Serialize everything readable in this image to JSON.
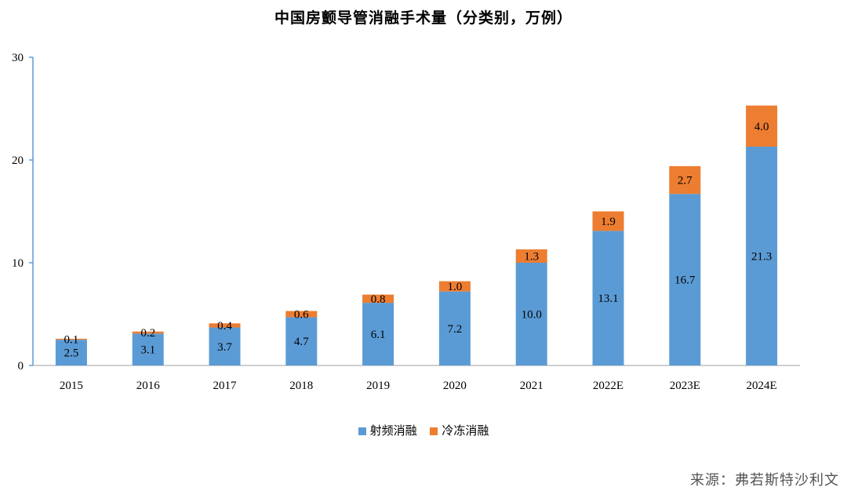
{
  "chart_data": {
    "type": "bar",
    "stacked": true,
    "title": "中国房颤导管消融手术量（分类别，万例）",
    "categories": [
      "2015",
      "2016",
      "2017",
      "2018",
      "2019",
      "2020",
      "2021",
      "2022E",
      "2023E",
      "2024E"
    ],
    "series": [
      {
        "name": "射频消融",
        "color": "#5b9bd5",
        "values": [
          2.5,
          3.1,
          3.7,
          4.7,
          6.1,
          7.2,
          10.0,
          13.1,
          16.7,
          21.3
        ]
      },
      {
        "name": "冷冻消融",
        "color": "#ed7d31",
        "values": [
          0.1,
          0.2,
          0.4,
          0.6,
          0.8,
          1.0,
          1.3,
          1.9,
          2.7,
          4.0
        ]
      }
    ],
    "ylim": [
      0,
      30
    ],
    "yticks": [
      0,
      10,
      20,
      30
    ],
    "legend_position": "bottom",
    "grid": false
  },
  "source": "来源：弗若斯特沙利文"
}
